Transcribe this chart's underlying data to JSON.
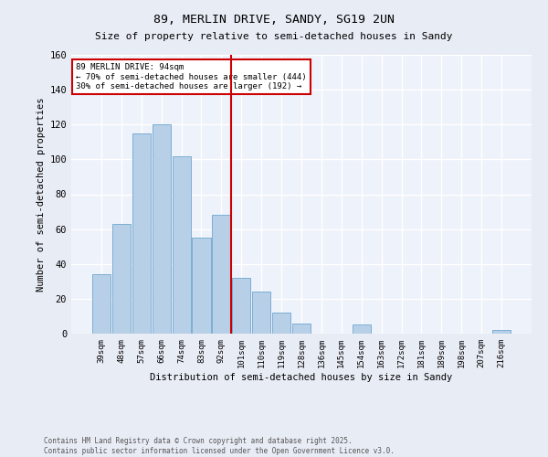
{
  "title1": "89, MERLIN DRIVE, SANDY, SG19 2UN",
  "title2": "Size of property relative to semi-detached houses in Sandy",
  "xlabel": "Distribution of semi-detached houses by size in Sandy",
  "ylabel": "Number of semi-detached properties",
  "categories": [
    "39sqm",
    "48sqm",
    "57sqm",
    "66sqm",
    "74sqm",
    "83sqm",
    "92sqm",
    "101sqm",
    "110sqm",
    "119sqm",
    "128sqm",
    "136sqm",
    "145sqm",
    "154sqm",
    "163sqm",
    "172sqm",
    "181sqm",
    "189sqm",
    "198sqm",
    "207sqm",
    "216sqm"
  ],
  "values": [
    34,
    63,
    115,
    120,
    102,
    55,
    68,
    32,
    24,
    12,
    6,
    0,
    0,
    5,
    0,
    0,
    0,
    0,
    0,
    0,
    2
  ],
  "bar_color": "#b8cfe8",
  "bar_edge_color": "#7aafd4",
  "vline_color": "#cc0000",
  "annotation_title": "89 MERLIN DRIVE: 94sqm",
  "annotation_line2": "← 70% of semi-detached houses are smaller (444)",
  "annotation_line3": "30% of semi-detached houses are larger (192) →",
  "ylim": [
    0,
    160
  ],
  "yticks": [
    0,
    20,
    40,
    60,
    80,
    100,
    120,
    140,
    160
  ],
  "footer1": "Contains HM Land Registry data © Crown copyright and database right 2025.",
  "footer2": "Contains public sector information licensed under the Open Government Licence v3.0.",
  "bg_color": "#e8ecf5",
  "plot_bg_color": "#eef2fa"
}
